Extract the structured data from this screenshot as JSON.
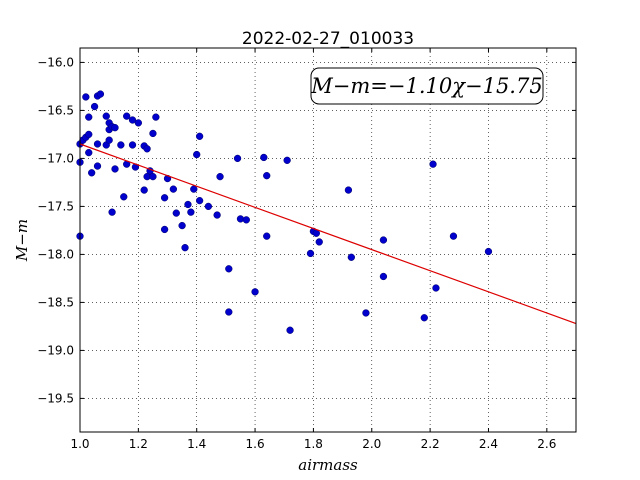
{
  "chart_data": {
    "type": "scatter",
    "title": "2022-02-27_010033",
    "xlabel": "airmass",
    "ylabel": "M−m",
    "xlim": [
      1.0,
      2.7
    ],
    "ylim": [
      -19.85,
      -15.85
    ],
    "y_inverted": true,
    "grid": true,
    "grid_style": "dotted",
    "x_ticks": [
      "1.0",
      "1.2",
      "1.4",
      "1.6",
      "1.8",
      "2.0",
      "2.2",
      "2.4",
      "2.6"
    ],
    "y_ticks": [
      "−16.0",
      "−16.5",
      "−17.0",
      "−17.5",
      "−18.0",
      "−18.5",
      "−19.0",
      "−19.5"
    ],
    "annotation": "M−m=−1.10χ−15.75",
    "fit": {
      "slope": -1.1,
      "intercept": -15.75
    },
    "colors": {
      "points": "#0000cc",
      "fit_line": "#dd0000"
    },
    "points": [
      [
        1.0,
        -16.85
      ],
      [
        1.0,
        -17.04
      ],
      [
        1.0,
        -17.81
      ],
      [
        1.01,
        -16.81
      ],
      [
        1.02,
        -16.36
      ],
      [
        1.02,
        -16.78
      ],
      [
        1.03,
        -16.57
      ],
      [
        1.03,
        -16.75
      ],
      [
        1.03,
        -16.94
      ],
      [
        1.04,
        -17.15
      ],
      [
        1.05,
        -16.46
      ],
      [
        1.06,
        -16.35
      ],
      [
        1.06,
        -16.85
      ],
      [
        1.06,
        -17.08
      ],
      [
        1.07,
        -16.33
      ],
      [
        1.09,
        -16.56
      ],
      [
        1.09,
        -16.86
      ],
      [
        1.1,
        -16.7
      ],
      [
        1.1,
        -16.81
      ],
      [
        1.1,
        -16.63
      ],
      [
        1.11,
        -16.67
      ],
      [
        1.11,
        -17.56
      ],
      [
        1.12,
        -16.68
      ],
      [
        1.12,
        -17.11
      ],
      [
        1.14,
        -16.86
      ],
      [
        1.15,
        -17.4
      ],
      [
        1.16,
        -17.06
      ],
      [
        1.16,
        -16.56
      ],
      [
        1.18,
        -16.6
      ],
      [
        1.18,
        -16.86
      ],
      [
        1.19,
        -17.09
      ],
      [
        1.2,
        -16.63
      ],
      [
        1.22,
        -16.87
      ],
      [
        1.22,
        -17.33
      ],
      [
        1.23,
        -17.19
      ],
      [
        1.24,
        -17.13
      ],
      [
        1.23,
        -16.9
      ],
      [
        1.25,
        -17.19
      ],
      [
        1.25,
        -16.74
      ],
      [
        1.26,
        -16.57
      ],
      [
        1.29,
        -17.41
      ],
      [
        1.29,
        -17.74
      ],
      [
        1.3,
        -17.21
      ],
      [
        1.32,
        -17.32
      ],
      [
        1.33,
        -17.57
      ],
      [
        1.35,
        -17.7
      ],
      [
        1.36,
        -17.93
      ],
      [
        1.37,
        -17.48
      ],
      [
        1.38,
        -17.56
      ],
      [
        1.39,
        -17.32
      ],
      [
        1.4,
        -16.96
      ],
      [
        1.41,
        -16.77
      ],
      [
        1.41,
        -17.44
      ],
      [
        1.44,
        -17.5
      ],
      [
        1.47,
        -17.59
      ],
      [
        1.48,
        -17.19
      ],
      [
        1.51,
        -18.6
      ],
      [
        1.51,
        -18.15
      ],
      [
        1.54,
        -17.0
      ],
      [
        1.55,
        -17.63
      ],
      [
        1.57,
        -17.64
      ],
      [
        1.6,
        -18.39
      ],
      [
        1.63,
        -16.99
      ],
      [
        1.64,
        -17.81
      ],
      [
        1.64,
        -17.18
      ],
      [
        1.71,
        -17.02
      ],
      [
        1.72,
        -18.79
      ],
      [
        1.79,
        -17.99
      ],
      [
        1.8,
        -17.76
      ],
      [
        1.81,
        -17.78
      ],
      [
        1.82,
        -17.87
      ],
      [
        1.92,
        -17.33
      ],
      [
        1.93,
        -18.03
      ],
      [
        1.98,
        -18.61
      ],
      [
        2.04,
        -17.85
      ],
      [
        2.04,
        -18.23
      ],
      [
        2.18,
        -18.66
      ],
      [
        2.21,
        -17.06
      ],
      [
        2.22,
        -18.35
      ],
      [
        2.28,
        -17.81
      ],
      [
        2.4,
        -17.97
      ]
    ]
  }
}
